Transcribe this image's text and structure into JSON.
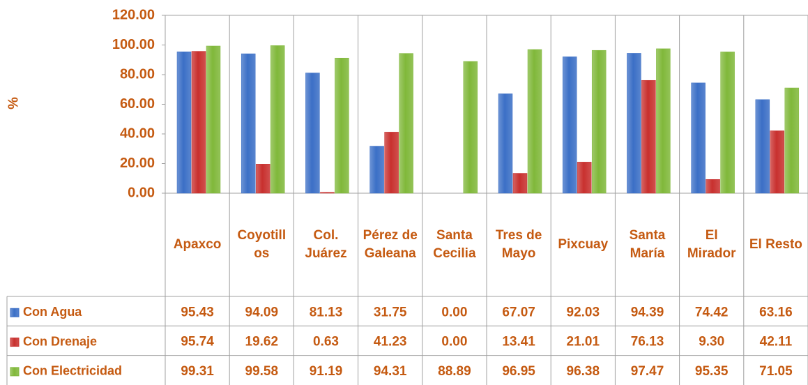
{
  "chart_data": {
    "type": "bar",
    "y_label": "%",
    "categories": [
      "Apaxco",
      "Coyotillos",
      "Col. Juárez",
      "Pérez de Galeana",
      "Santa Cecilia",
      "Tres de Mayo",
      "Pixcuay",
      "Santa María",
      "El Mirador",
      "El Resto"
    ],
    "series": [
      {
        "name": "Con Agua",
        "color": "#3b6fc6",
        "values": [
          95.43,
          94.09,
          81.13,
          31.75,
          0,
          67.07,
          92.03,
          94.39,
          74.42,
          63.16
        ],
        "value_labels": [
          "95.43",
          "94.09",
          "81.13",
          "31.75",
          "0.00",
          "67.07",
          "92.03",
          "94.39",
          "74.42",
          "63.16"
        ]
      },
      {
        "name": "Con Drenaje",
        "color": "#c8302e",
        "values": [
          95.74,
          19.62,
          0.63,
          41.23,
          0,
          13.41,
          21.01,
          76.13,
          9.3,
          42.11
        ],
        "value_labels": [
          "95.74",
          "19.62",
          "0.63",
          "41.23",
          "0.00",
          "13.41",
          "21.01",
          "76.13",
          "9.30",
          "42.11"
        ]
      },
      {
        "name": "Con Electricidad",
        "color": "#80b83a",
        "values": [
          99.31,
          99.58,
          91.19,
          94.31,
          88.89,
          96.95,
          96.38,
          97.47,
          95.35,
          71.05
        ],
        "value_labels": [
          "99.31",
          "99.58",
          "91.19",
          "94.31",
          "88.89",
          "96.95",
          "96.38",
          "97.47",
          "95.35",
          "71.05"
        ]
      }
    ],
    "ylim": [
      0,
      120
    ],
    "yticks": [
      {
        "value": 0,
        "label": "0.00"
      },
      {
        "value": 20,
        "label": "20.00"
      },
      {
        "value": 40,
        "label": "40.00"
      },
      {
        "value": 60,
        "label": "60.00"
      },
      {
        "value": 80,
        "label": "80.00"
      },
      {
        "value": 100,
        "label": "100.00"
      },
      {
        "value": 120,
        "label": "120.00"
      }
    ],
    "grid": false
  }
}
